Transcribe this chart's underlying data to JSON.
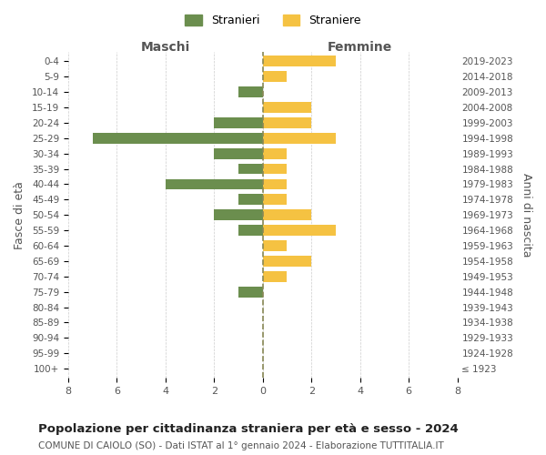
{
  "age_groups": [
    "100+",
    "95-99",
    "90-94",
    "85-89",
    "80-84",
    "75-79",
    "70-74",
    "65-69",
    "60-64",
    "55-59",
    "50-54",
    "45-49",
    "40-44",
    "35-39",
    "30-34",
    "25-29",
    "20-24",
    "15-19",
    "10-14",
    "5-9",
    "0-4"
  ],
  "birth_years": [
    "≤ 1923",
    "1924-1928",
    "1929-1933",
    "1934-1938",
    "1939-1943",
    "1944-1948",
    "1949-1953",
    "1954-1958",
    "1959-1963",
    "1964-1968",
    "1969-1973",
    "1974-1978",
    "1979-1983",
    "1984-1988",
    "1989-1993",
    "1994-1998",
    "1999-2003",
    "2004-2008",
    "2009-2013",
    "2014-2018",
    "2019-2023"
  ],
  "males": [
    0,
    0,
    0,
    0,
    0,
    1,
    0,
    0,
    0,
    1,
    2,
    1,
    4,
    1,
    2,
    7,
    2,
    0,
    1,
    0,
    0
  ],
  "females": [
    0,
    0,
    0,
    0,
    0,
    0,
    1,
    2,
    1,
    3,
    2,
    1,
    1,
    1,
    1,
    3,
    2,
    2,
    0,
    1,
    3
  ],
  "male_color": "#6b8e4e",
  "female_color": "#f5c242",
  "dashed_line_color": "#888855",
  "grid_color": "#cccccc",
  "bg_color": "#ffffff",
  "text_color": "#555555",
  "title": "Popolazione per cittadinanza straniera per età e sesso - 2024",
  "subtitle": "COMUNE DI CAIOLO (SO) - Dati ISTAT al 1° gennaio 2024 - Elaborazione TUTTITALIA.IT",
  "xlabel_left": "Maschi",
  "xlabel_right": "Femmine",
  "ylabel_left": "Fasce di età",
  "ylabel_right": "Anni di nascita",
  "legend_stranieri": "Stranieri",
  "legend_straniere": "Straniere",
  "xlim": 8
}
